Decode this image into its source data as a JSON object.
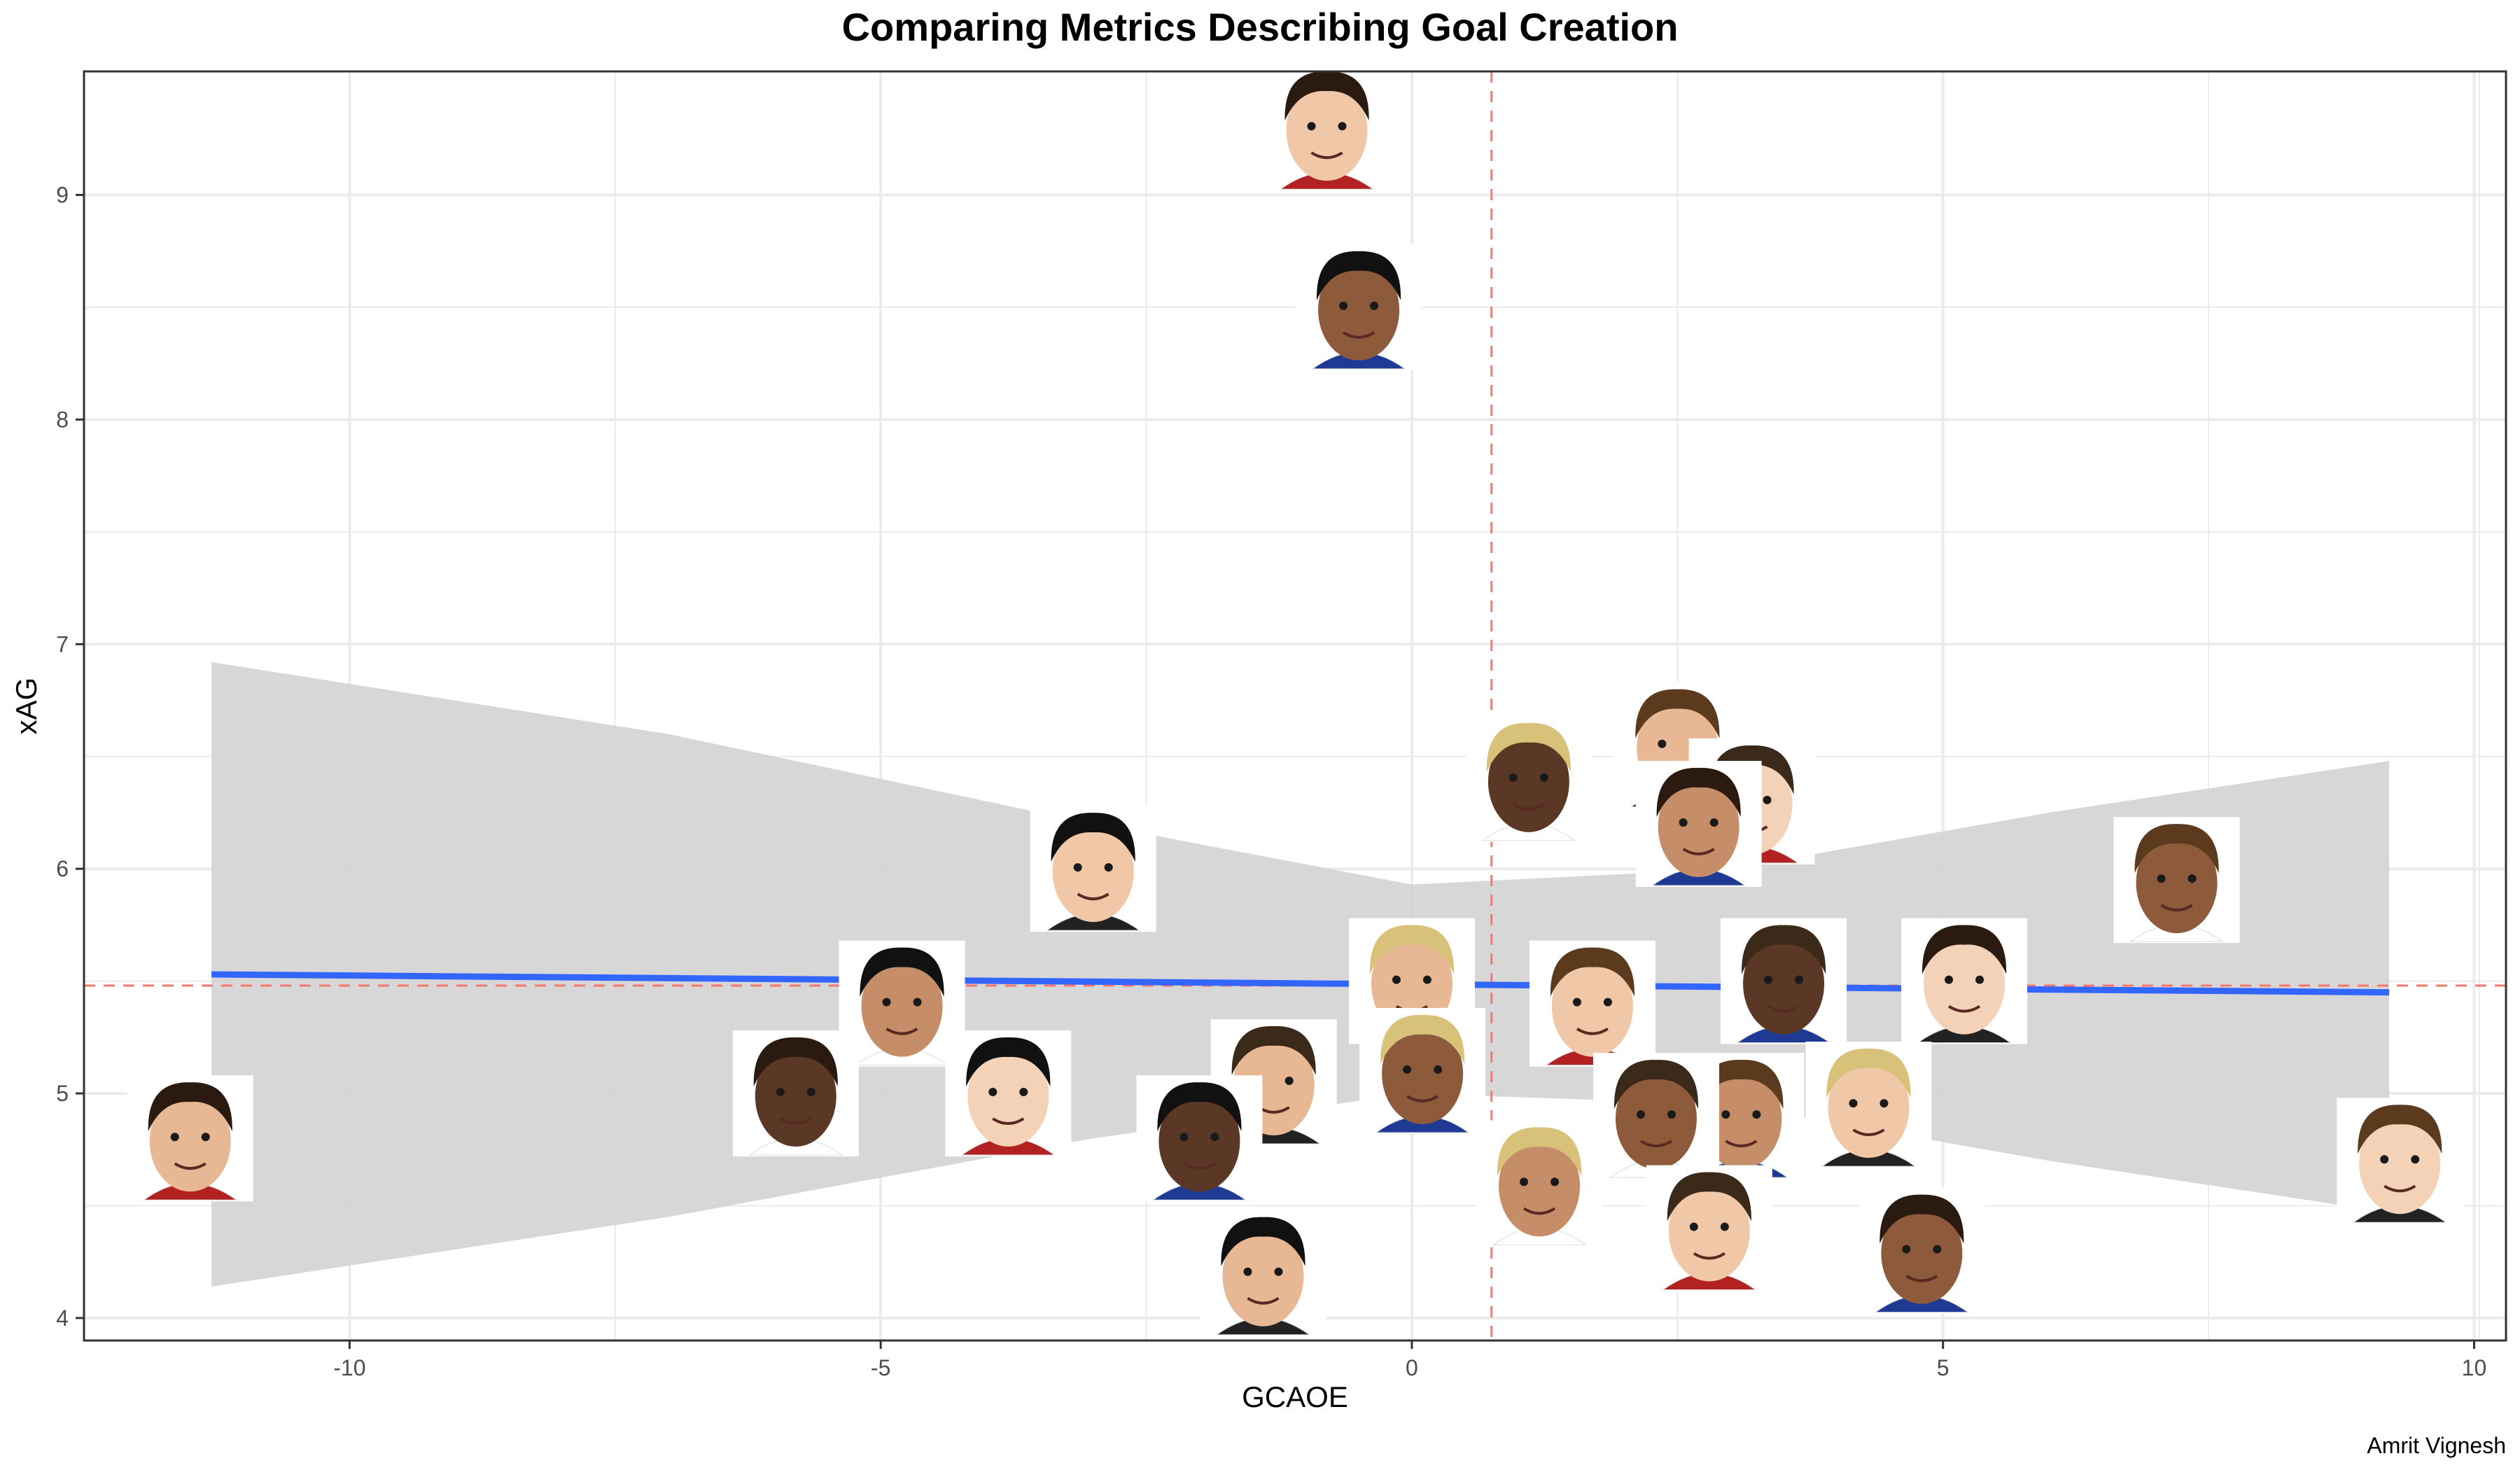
{
  "caption": "Amrit Vignesh",
  "chart_data": {
    "type": "scatter",
    "title": "Comparing Metrics Describing Goal Creation",
    "xlabel": "GCAOE",
    "ylabel": "xAG",
    "xlim": [
      -12.5,
      10.3
    ],
    "ylim": [
      3.9,
      9.55
    ],
    "xticks": [
      -10,
      -5,
      0,
      5,
      10
    ],
    "xtick_labels": [
      "-10",
      "-5",
      "0",
      "5",
      "10"
    ],
    "yticks": [
      4,
      5,
      6,
      7,
      8,
      9
    ],
    "ytick_labels": [
      "4",
      "5",
      "6",
      "7",
      "8",
      "9"
    ],
    "grid": true,
    "marker": "player-face-photo",
    "points": [
      {
        "x": -0.8,
        "y": 9.3
      },
      {
        "x": -0.5,
        "y": 8.5
      },
      {
        "x": 2.5,
        "y": 6.55
      },
      {
        "x": 1.1,
        "y": 6.4
      },
      {
        "x": 3.2,
        "y": 6.3
      },
      {
        "x": 2.7,
        "y": 6.2
      },
      {
        "x": -3,
        "y": 6.0
      },
      {
        "x": 7.2,
        "y": 5.95
      },
      {
        "x": 0,
        "y": 5.5
      },
      {
        "x": 3.5,
        "y": 5.5
      },
      {
        "x": 5.2,
        "y": 5.5
      },
      {
        "x": -4.8,
        "y": 5.4
      },
      {
        "x": 1.7,
        "y": 5.4
      },
      {
        "x": 0.1,
        "y": 5.1
      },
      {
        "x": -1.3,
        "y": 5.05
      },
      {
        "x": -5.8,
        "y": 5.0
      },
      {
        "x": -3.8,
        "y": 5.0
      },
      {
        "x": 3.1,
        "y": 4.9
      },
      {
        "x": 4.3,
        "y": 4.95
      },
      {
        "x": 2.3,
        "y": 4.9
      },
      {
        "x": -11.5,
        "y": 4.8
      },
      {
        "x": -2,
        "y": 4.8
      },
      {
        "x": 9.3,
        "y": 4.7
      },
      {
        "x": 1.2,
        "y": 4.6
      },
      {
        "x": 2.8,
        "y": 4.4
      },
      {
        "x": 4.8,
        "y": 4.3
      },
      {
        "x": -1.4,
        "y": 4.2
      }
    ],
    "trend": {
      "x": [
        -11.3,
        9.2
      ],
      "y": [
        5.53,
        5.45
      ],
      "color": "#3366FF"
    },
    "confidence_band": {
      "x": [
        -11.3,
        -7,
        -3,
        0,
        3,
        6,
        9.2
      ],
      "upper": [
        6.92,
        6.6,
        6.2,
        5.93,
        6.0,
        6.25,
        6.48
      ],
      "lower": [
        4.14,
        4.45,
        4.8,
        5.0,
        4.95,
        4.7,
        4.47
      ],
      "color": "#D3D3D3"
    },
    "reference_lines": {
      "vertical_x": 0.75,
      "horizontal_y": 5.48,
      "color": "#F8766D",
      "style": "dashed"
    },
    "colors": {
      "panel_border": "#333333",
      "grid": "#EBEBEB",
      "axis_text": "#4D4D4D"
    }
  }
}
